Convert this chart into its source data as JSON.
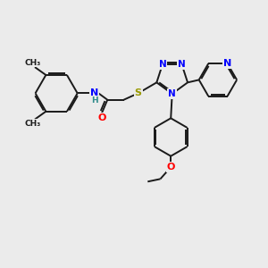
{
  "bg_color": "#ebebeb",
  "bond_color": "#1a1a1a",
  "bond_width": 1.4,
  "dbo": 0.055,
  "atom_colors": {
    "N": "#0000ff",
    "O": "#ff0000",
    "S": "#999900",
    "H": "#2e8b8b",
    "C": "#1a1a1a"
  },
  "font_size": 7.5,
  "figsize": [
    3.0,
    3.0
  ],
  "dpi": 100
}
